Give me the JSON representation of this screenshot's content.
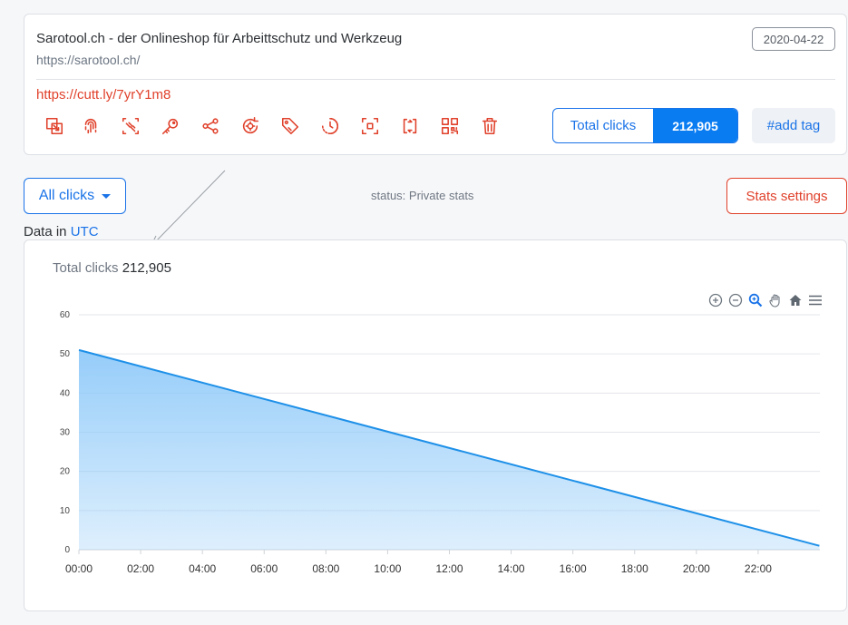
{
  "link": {
    "title": "Sarotool.ch - der Onlineshop für Arbeittschutz und Werkzeug",
    "url": "https://sarotool.ch/",
    "date": "2020-04-22",
    "short_url": "https://cutt.ly/7yrY1m8",
    "total_clicks_label": "Total clicks",
    "total_clicks_value": "212,905",
    "add_tag_label": "#add tag"
  },
  "actions": [
    {
      "name": "edit-icon"
    },
    {
      "name": "fingerprint-icon"
    },
    {
      "name": "utm-icon"
    },
    {
      "name": "key-icon"
    },
    {
      "name": "share-icon"
    },
    {
      "name": "redirect-settings-icon"
    },
    {
      "name": "tag-icon"
    },
    {
      "name": "expiry-clock-icon"
    },
    {
      "name": "focus-icon"
    },
    {
      "name": "swap-icon"
    },
    {
      "name": "qr-code-icon"
    },
    {
      "name": "trash-icon"
    }
  ],
  "controls": {
    "filter_label": "All clicks",
    "status": "status: Private stats",
    "stats_settings_label": "Stats settings",
    "data_in_label": "Data in",
    "timezone": "UTC"
  },
  "chart_header": {
    "total_label": "Total clicks",
    "total_value": "212,905"
  },
  "colors": {
    "accent_blue": "#1a73e8",
    "accent_red": "#e0412b",
    "series_line": "#1e90e8",
    "series_fill": "#90caf9"
  },
  "chart_data": {
    "type": "area",
    "x": [
      "00:00",
      "23:59"
    ],
    "xticks": [
      "00:00",
      "02:00",
      "04:00",
      "06:00",
      "08:00",
      "10:00",
      "12:00",
      "14:00",
      "16:00",
      "18:00",
      "20:00",
      "22:00"
    ],
    "series": [
      {
        "values": [
          51,
          1
        ]
      }
    ],
    "xlim": [
      0,
      24
    ],
    "ylim": [
      0,
      60
    ],
    "yticks": [
      0,
      10,
      20,
      30,
      40,
      50,
      60
    ],
    "grid": true,
    "title": "",
    "xlabel": "",
    "ylabel": ""
  }
}
